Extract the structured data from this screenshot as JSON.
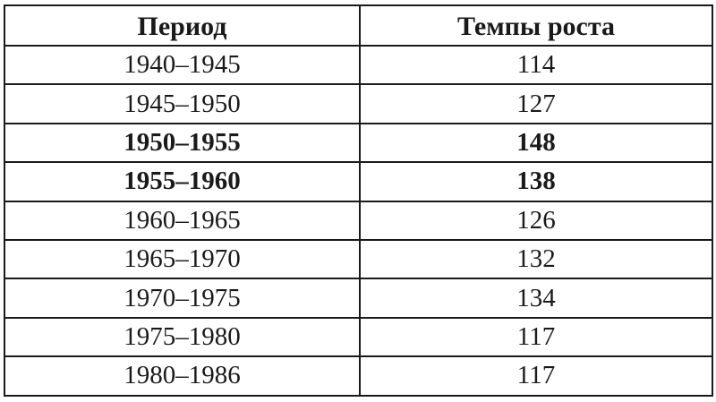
{
  "table": {
    "headers": [
      "Период",
      "Темпы роста"
    ],
    "rows": [
      {
        "period": "1940–1945",
        "value": "114",
        "bold": false
      },
      {
        "period": "1945–1950",
        "value": "127",
        "bold": false
      },
      {
        "period": "1950–1955",
        "value": "148",
        "bold": true
      },
      {
        "period": "1955–1960",
        "value": "138",
        "bold": true
      },
      {
        "period": "1960–1965",
        "value": "126",
        "bold": false
      },
      {
        "period": "1965–1970",
        "value": "132",
        "bold": false
      },
      {
        "period": "1970–1975",
        "value": "134",
        "bold": false
      },
      {
        "period": "1975–1980",
        "value": "117",
        "bold": false
      },
      {
        "period": "1980–1986",
        "value": "117",
        "bold": false
      }
    ]
  }
}
